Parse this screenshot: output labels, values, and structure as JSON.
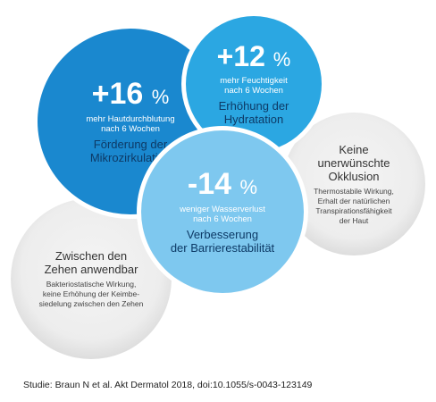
{
  "bubbles": {
    "hautdurchblutung": {
      "value": "+16",
      "unit": "%",
      "line1": "mehr Hautdurchblutung",
      "line2": "nach 6 Wochen",
      "title1": "Förderung der",
      "title2": "Mikrozirkulation"
    },
    "feuchtigkeit": {
      "value": "+12",
      "unit": "%",
      "line1": "mehr Feuchtigkeit",
      "line2": "nach 6 Wochen",
      "title1": "Erhöhung der",
      "title2": "Hydratation"
    },
    "wasserverlust": {
      "value": "-14",
      "unit": "%",
      "line1": "weniger Wasserverlust",
      "line2": "nach 6 Wochen",
      "title1": "Verbesserung",
      "title2": "der Barrierestabilität"
    },
    "okklusion": {
      "head1": "Keine",
      "head2": "unerwünschte",
      "head3": "Okklusion",
      "sub1": "Thermostabile Wirkung,",
      "sub2": "Erhalt der natürlichen",
      "sub3": "Transpirationsfähigkeit",
      "sub4": "der Haut"
    },
    "zehen": {
      "head1": "Zwischen den",
      "head2": "Zehen anwendbar",
      "sub1": "Bakteriostatische Wirkung,",
      "sub2": "keine Erhöhung der Keimbe-",
      "sub3": "siedelung zwischen den Zehen"
    }
  },
  "citation": "Studie: Braun N et al. Akt Dermatol 2018, doi:10.1055/s-0043-123149",
  "colors": {
    "dark_blue": "#1a88cf",
    "mid_blue": "#2ba7e2",
    "light_blue": "#7ec8ef",
    "heading_navy": "#0d3a66"
  }
}
